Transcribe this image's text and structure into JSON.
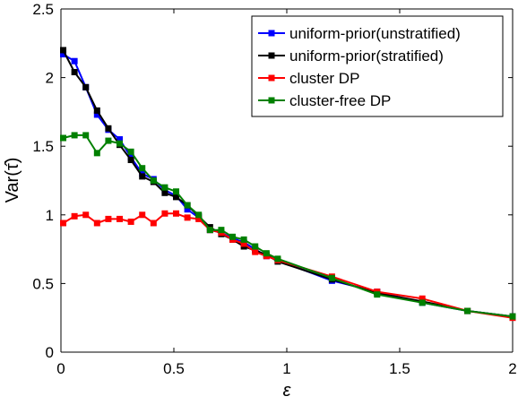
{
  "chart_data": {
    "type": "line",
    "title": "",
    "xlabel": "ε",
    "ylabel": "Var(τ̂)",
    "xlim": [
      0,
      2
    ],
    "ylim": [
      0,
      2.5
    ],
    "xticks": [
      0,
      0.5,
      1,
      1.5,
      2
    ],
    "xtick_labels": [
      "0",
      "0.5",
      "1",
      "1.5",
      "2"
    ],
    "yticks": [
      0,
      0.5,
      1,
      1.5,
      2,
      2.5
    ],
    "ytick_labels": [
      "0",
      "0.5",
      "1",
      "1.5",
      "2",
      "2.5"
    ],
    "grid": false,
    "legend_position": "top-right",
    "x": [
      0.01,
      0.06,
      0.11,
      0.16,
      0.21,
      0.26,
      0.31,
      0.36,
      0.41,
      0.46,
      0.51,
      0.56,
      0.61,
      0.66,
      0.71,
      0.76,
      0.81,
      0.86,
      0.91,
      0.96,
      1.2,
      1.4,
      1.6,
      1.8,
      2.0
    ],
    "series": [
      {
        "name": "uniform-prior(unstratified)",
        "color": "#0000ff",
        "values": [
          2.17,
          2.12,
          1.93,
          1.73,
          1.62,
          1.55,
          1.42,
          1.3,
          1.26,
          1.18,
          1.14,
          1.04,
          0.98,
          0.89,
          0.87,
          0.83,
          0.8,
          0.75,
          0.7,
          0.67,
          0.52,
          0.44,
          0.36,
          0.3,
          0.26
        ]
      },
      {
        "name": "uniform-prior(stratified)",
        "color": "#000000",
        "values": [
          2.2,
          2.04,
          1.93,
          1.76,
          1.63,
          1.51,
          1.4,
          1.28,
          1.24,
          1.16,
          1.13,
          1.07,
          0.99,
          0.91,
          0.86,
          0.82,
          0.77,
          0.74,
          0.71,
          0.66,
          0.53,
          0.43,
          0.37,
          0.3,
          0.26
        ]
      },
      {
        "name": "cluster DP",
        "color": "#ff0000",
        "values": [
          0.94,
          0.99,
          1.0,
          0.94,
          0.97,
          0.97,
          0.95,
          1.0,
          0.94,
          1.01,
          1.01,
          0.98,
          0.97,
          0.89,
          0.87,
          0.82,
          0.79,
          0.73,
          0.7,
          0.67,
          0.55,
          0.44,
          0.39,
          0.3,
          0.25
        ]
      },
      {
        "name": "cluster-free DP",
        "color": "#008000",
        "values": [
          1.56,
          1.58,
          1.58,
          1.45,
          1.54,
          1.52,
          1.46,
          1.34,
          1.25,
          1.2,
          1.17,
          1.07,
          1.0,
          0.89,
          0.89,
          0.84,
          0.82,
          0.77,
          0.72,
          0.68,
          0.54,
          0.42,
          0.36,
          0.3,
          0.26
        ]
      }
    ]
  }
}
